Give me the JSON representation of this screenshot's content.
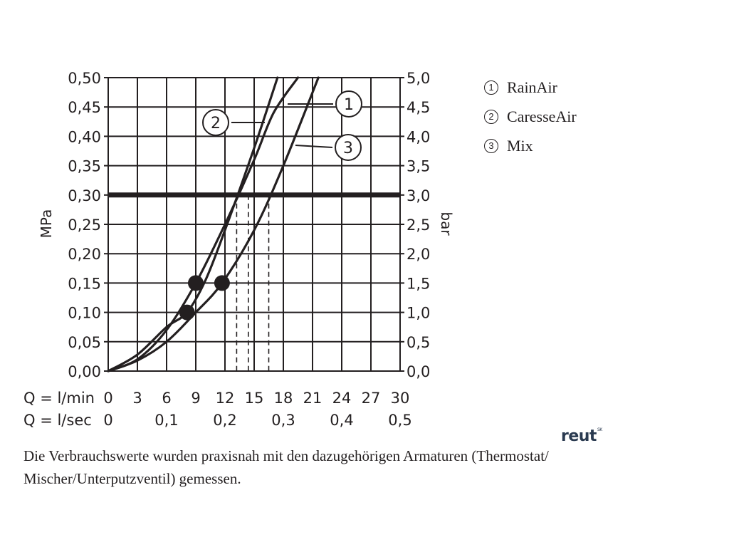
{
  "chart_data": {
    "type": "line",
    "left_axis": {
      "label": "MPa",
      "ticks": [
        "0,50",
        "0,45",
        "0,40",
        "0,35",
        "0,30",
        "0,25",
        "0,20",
        "0,15",
        "0,10",
        "0,05",
        "0,00"
      ],
      "range": [
        0,
        0.5
      ]
    },
    "right_axis": {
      "label": "bar",
      "ticks": [
        "5,0",
        "4,5",
        "4,0",
        "3,5",
        "3,0",
        "2,5",
        "2,0",
        "1,5",
        "1,0",
        "0,5",
        "0,0"
      ],
      "range": [
        0,
        5
      ]
    },
    "x_axis_lmin": {
      "label": "Q = l/min",
      "ticks": [
        "0",
        "3",
        "6",
        "9",
        "12",
        "15",
        "18",
        "21",
        "24",
        "27",
        "30"
      ],
      "range": [
        0,
        30
      ]
    },
    "x_axis_lsec": {
      "label": "Q = l/sec",
      "ticks": [
        "0",
        "0,1",
        "0,2",
        "0,3",
        "0,4",
        "0,5"
      ],
      "range": [
        0,
        0.5
      ]
    },
    "grid": true,
    "reference_line": {
      "y_mpa": 0.3
    },
    "series": [
      {
        "name": "RainAir",
        "callout": "1",
        "x": [
          0,
          3,
          6,
          9,
          12,
          15,
          17,
          19.5
        ],
        "y": [
          0,
          0.02,
          0.07,
          0.15,
          0.25,
          0.36,
          0.44,
          0.5
        ],
        "operating_point": {
          "x": 9,
          "y": 0.15
        },
        "flow_at_3bar": 14.4
      },
      {
        "name": "CaresseAir",
        "callout": "2",
        "x": [
          0,
          3,
          6,
          8.1,
          10,
          12,
          15,
          17.4
        ],
        "y": [
          0,
          0.028,
          0.075,
          0.1,
          0.155,
          0.24,
          0.38,
          0.5
        ],
        "operating_point": {
          "x": 8.1,
          "y": 0.1
        },
        "flow_at_3bar": 13.2
      },
      {
        "name": "Mix",
        "callout": "3",
        "x": [
          0,
          3,
          6,
          9,
          11.7,
          15,
          18,
          21.6
        ],
        "y": [
          0,
          0.018,
          0.05,
          0.1,
          0.15,
          0.24,
          0.35,
          0.5
        ],
        "operating_point": {
          "x": 11.7,
          "y": 0.15
        },
        "flow_at_3bar": 16.5
      }
    ]
  },
  "legend": [
    {
      "symbol": "1",
      "label": "RainAir"
    },
    {
      "symbol": "2",
      "label": "CaresseAir"
    },
    {
      "symbol": "3",
      "label": "Mix"
    }
  ],
  "logo": {
    "text": "reut",
    "superscript": "SK"
  },
  "caption": {
    "line1": "Die Verbrauchswerte wurden praxisnah mit den dazugehörigen Armaturen (Thermostat/",
    "line2": "Mischer/Unterputzventil) gemessen."
  }
}
